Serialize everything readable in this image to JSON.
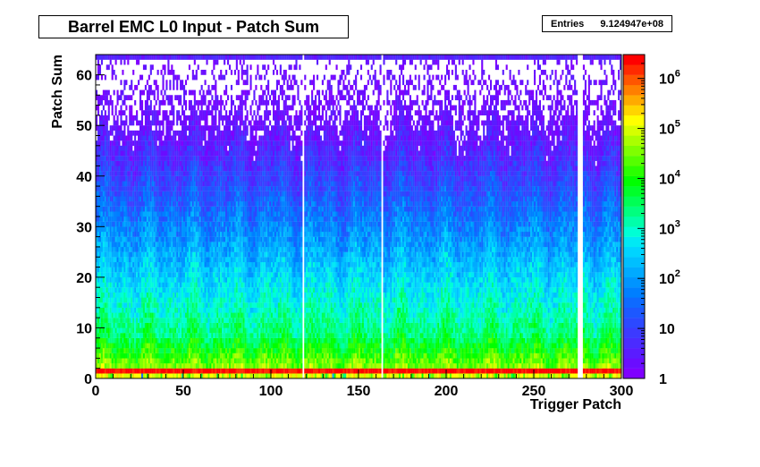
{
  "title": "Barrel EMC L0 Input - Patch Sum",
  "stats": {
    "label": "Entries",
    "value": "9.124947e+08"
  },
  "footer_faded": "",
  "chart_data": {
    "type": "heatmap",
    "title": "Barrel EMC L0 Input - Patch Sum",
    "xlabel": "Trigger Patch",
    "ylabel": "Patch Sum",
    "x_range": [
      0,
      300
    ],
    "y_range": [
      0,
      64
    ],
    "x_bins": 300,
    "y_bins": 64,
    "x_ticks": [
      0,
      50,
      100,
      150,
      200,
      250,
      300
    ],
    "y_ticks": [
      0,
      10,
      20,
      30,
      40,
      50,
      60
    ],
    "z_scale": "log",
    "z_range": [
      1,
      3000000
    ],
    "z_ticks": [
      {
        "value": 1,
        "label": "1",
        "exp": ""
      },
      {
        "value": 10,
        "label": "10",
        "exp": ""
      },
      {
        "value": 100,
        "label": "10",
        "exp": "2"
      },
      {
        "value": 1000,
        "label": "10",
        "exp": "3"
      },
      {
        "value": 10000,
        "label": "10",
        "exp": "4"
      },
      {
        "value": 100000,
        "label": "10",
        "exp": "5"
      },
      {
        "value": 1000000,
        "label": "10",
        "exp": "6"
      }
    ],
    "empty_columns": [
      118,
      163,
      275,
      276,
      277
    ],
    "palette": [
      "#7f00ff",
      "#6a0dff",
      "#5a1cff",
      "#4b2bff",
      "#3c3aff",
      "#2c49ff",
      "#1d58ff",
      "#0e6aff",
      "#007fff",
      "#0094ff",
      "#00aaff",
      "#00bfff",
      "#00d4ff",
      "#00e9f4",
      "#00ffd5",
      "#00ffaa",
      "#00ff7f",
      "#00ff55",
      "#00ff2a",
      "#00ff00",
      "#2aff00",
      "#55ff00",
      "#7fff00",
      "#aaff00",
      "#d5ff00",
      "#ffff00",
      "#ffd500",
      "#ffaa00",
      "#ff7f00",
      "#ff5500",
      "#ff2a00",
      "#ff0000"
    ],
    "grid": false,
    "legend": "right colorbar"
  }
}
